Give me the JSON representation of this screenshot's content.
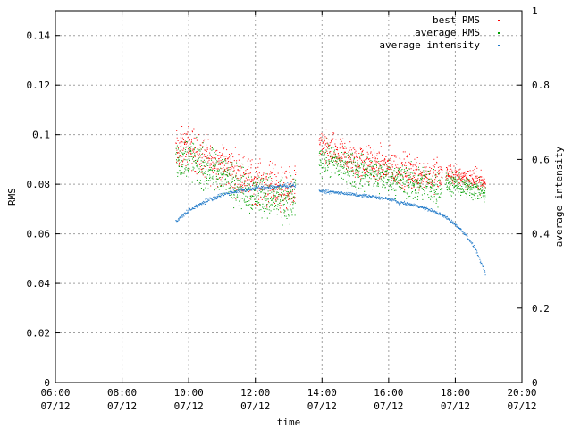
{
  "chart_data": {
    "type": "scatter",
    "xlabel": "time",
    "ylabel": "RMS",
    "y2label": "average intensity",
    "x_range": [
      "06:00",
      "20:00"
    ],
    "x_ticks": [
      {
        "line1": "06:00",
        "line2": "07/12",
        "hour": 6
      },
      {
        "line1": "08:00",
        "line2": "07/12",
        "hour": 8
      },
      {
        "line1": "10:00",
        "line2": "07/12",
        "hour": 10
      },
      {
        "line1": "12:00",
        "line2": "07/12",
        "hour": 12
      },
      {
        "line1": "14:00",
        "line2": "07/12",
        "hour": 14
      },
      {
        "line1": "16:00",
        "line2": "07/12",
        "hour": 16
      },
      {
        "line1": "18:00",
        "line2": "07/12",
        "hour": 18
      },
      {
        "line1": "20:00",
        "line2": "07/12",
        "hour": 20
      }
    ],
    "y_range": [
      0,
      0.15
    ],
    "y_ticks": [
      "0",
      "0.02",
      "0.04",
      "0.06",
      "0.08",
      "0.1",
      "0.12",
      "0.14"
    ],
    "y2_range": [
      0,
      1
    ],
    "y2_ticks": [
      "0",
      "0.2",
      "0.4",
      "0.6",
      "0.8",
      "1"
    ],
    "grid": true,
    "legend_position": "top-right",
    "series": [
      {
        "name": "best RMS",
        "axis": "y",
        "color": "#ff0000",
        "segments": [
          {
            "start": 9.6,
            "end": 13.2,
            "trend": [
              [
                9.6,
                0.093
              ],
              [
                10.0,
                0.095
              ],
              [
                10.5,
                0.09
              ],
              [
                11.0,
                0.088
              ],
              [
                11.4,
                0.085
              ],
              [
                11.8,
                0.082
              ],
              [
                12.2,
                0.08
              ],
              [
                12.6,
                0.079
              ],
              [
                13.0,
                0.076
              ],
              [
                13.2,
                0.08
              ]
            ],
            "noise": 0.006
          },
          {
            "start": 13.9,
            "end": 17.6,
            "trend": [
              [
                13.9,
                0.095
              ],
              [
                14.5,
                0.092
              ],
              [
                15.0,
                0.089
              ],
              [
                15.5,
                0.088
              ],
              [
                16.0,
                0.087
              ],
              [
                16.5,
                0.085
              ],
              [
                17.0,
                0.084
              ],
              [
                17.6,
                0.083
              ]
            ],
            "noise": 0.005
          },
          {
            "start": 17.7,
            "end": 18.9,
            "trend": [
              [
                17.7,
                0.084
              ],
              [
                18.2,
                0.083
              ],
              [
                18.6,
                0.082
              ],
              [
                18.9,
                0.08
              ]
            ],
            "noise": 0.003
          }
        ]
      },
      {
        "name": "average RMS",
        "axis": "y",
        "color": "#00a000",
        "segments": [
          {
            "start": 9.6,
            "end": 13.2,
            "trend": [
              [
                9.6,
                0.089
              ],
              [
                10.0,
                0.091
              ],
              [
                10.5,
                0.086
              ],
              [
                11.0,
                0.084
              ],
              [
                11.4,
                0.081
              ],
              [
                11.8,
                0.077
              ],
              [
                12.2,
                0.076
              ],
              [
                12.6,
                0.074
              ],
              [
                13.0,
                0.071
              ],
              [
                13.2,
                0.076
              ]
            ],
            "noise": 0.006
          },
          {
            "start": 13.9,
            "end": 17.6,
            "trend": [
              [
                13.9,
                0.091
              ],
              [
                14.5,
                0.088
              ],
              [
                15.0,
                0.085
              ],
              [
                15.5,
                0.084
              ],
              [
                16.0,
                0.083
              ],
              [
                16.5,
                0.081
              ],
              [
                17.0,
                0.08
              ],
              [
                17.6,
                0.079
              ]
            ],
            "noise": 0.005
          },
          {
            "start": 17.7,
            "end": 18.9,
            "trend": [
              [
                17.7,
                0.08
              ],
              [
                18.2,
                0.079
              ],
              [
                18.6,
                0.078
              ],
              [
                18.9,
                0.076
              ]
            ],
            "noise": 0.003
          }
        ]
      },
      {
        "name": "average intensity",
        "axis": "y2",
        "color": "#1e78c8",
        "segments": [
          {
            "start": 9.6,
            "end": 13.2,
            "trend": [
              [
                9.6,
                0.432
              ],
              [
                10.0,
                0.463
              ],
              [
                10.5,
                0.488
              ],
              [
                11.0,
                0.506
              ],
              [
                11.5,
                0.516
              ],
              [
                12.0,
                0.522
              ],
              [
                12.5,
                0.526
              ],
              [
                13.0,
                0.53
              ],
              [
                13.2,
                0.532
              ]
            ],
            "noise": 0.004
          },
          {
            "start": 13.9,
            "end": 16.2,
            "trend": [
              [
                13.9,
                0.515
              ],
              [
                14.5,
                0.51
              ],
              [
                15.0,
                0.505
              ],
              [
                15.5,
                0.5
              ],
              [
                16.0,
                0.493
              ],
              [
                16.2,
                0.49
              ]
            ],
            "noise": 0.003
          },
          {
            "start": 16.2,
            "end": 18.9,
            "trend": [
              [
                16.2,
                0.486
              ],
              [
                16.8,
                0.476
              ],
              [
                17.3,
                0.462
              ],
              [
                17.7,
                0.445
              ],
              [
                18.0,
                0.424
              ],
              [
                18.3,
                0.398
              ],
              [
                18.6,
                0.358
              ],
              [
                18.9,
                0.29
              ]
            ],
            "noise": 0.003
          }
        ]
      }
    ]
  }
}
